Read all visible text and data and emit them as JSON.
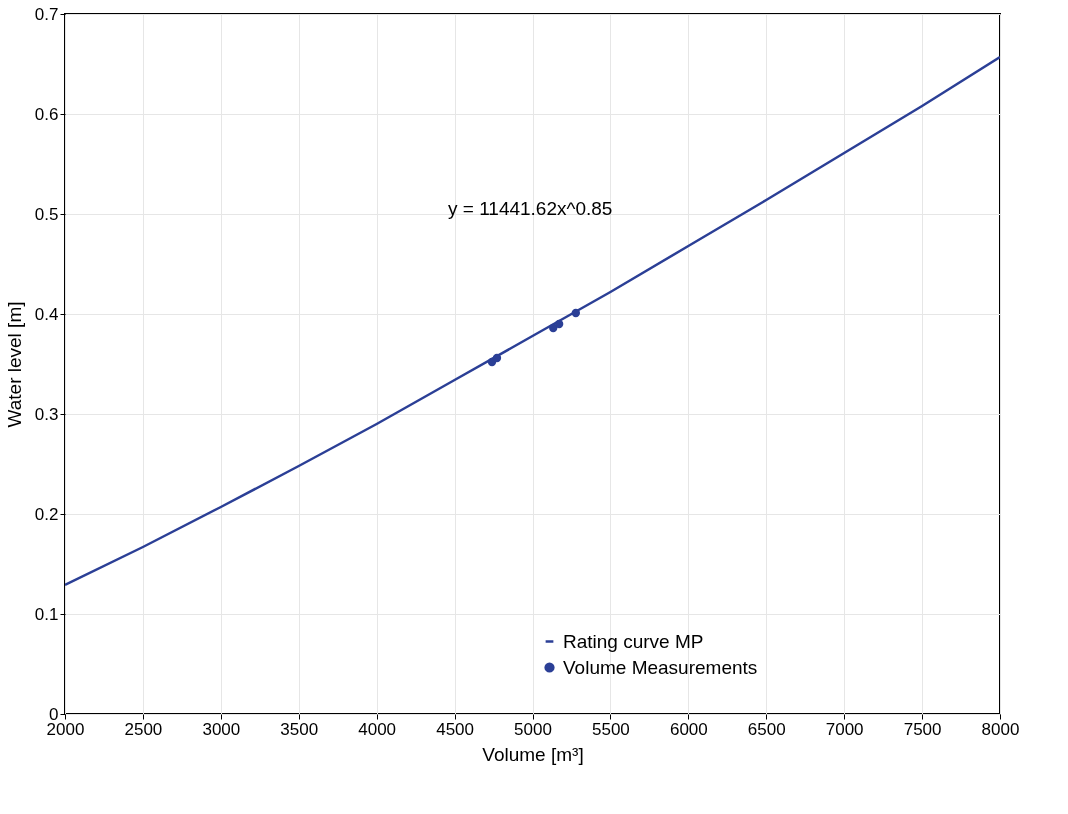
{
  "chart_data": {
    "type": "line",
    "xlabel": "Volume [m³]",
    "ylabel": "Water level [m]",
    "annotations": [
      "y = 11441.62x^0.85"
    ],
    "xlim": [
      2000,
      8000
    ],
    "xticks": [
      2000,
      2500,
      3000,
      3500,
      4000,
      4500,
      5000,
      5500,
      6000,
      6500,
      7000,
      7500,
      8000
    ],
    "ylim": [
      0,
      0.7
    ],
    "yticks": [
      0,
      0.1,
      0.2,
      0.3,
      0.4,
      0.5,
      0.6,
      0.7
    ],
    "grid": true,
    "legend": "bottom right",
    "series": [
      {
        "name": "Rating curve MP",
        "marker": "none",
        "color": "#2b3f96",
        "x": [
          2000,
          2500,
          3000,
          3500,
          4000,
          4500,
          5000,
          5500,
          6000,
          6500,
          7000,
          7500,
          8000
        ],
        "values": [
          0.129,
          0.167,
          0.207,
          0.248,
          0.29,
          0.334,
          0.378,
          0.422,
          0.468,
          0.514,
          0.561,
          0.608,
          0.657
        ]
      },
      {
        "name": "Volume Measurements",
        "type": "scatter",
        "marker": "circle",
        "color": "#2b3f96",
        "x": [
          4740,
          4772,
          5133,
          5171,
          5278
        ],
        "values": [
          0.352,
          0.356,
          0.386,
          0.39,
          0.401
        ]
      }
    ]
  }
}
